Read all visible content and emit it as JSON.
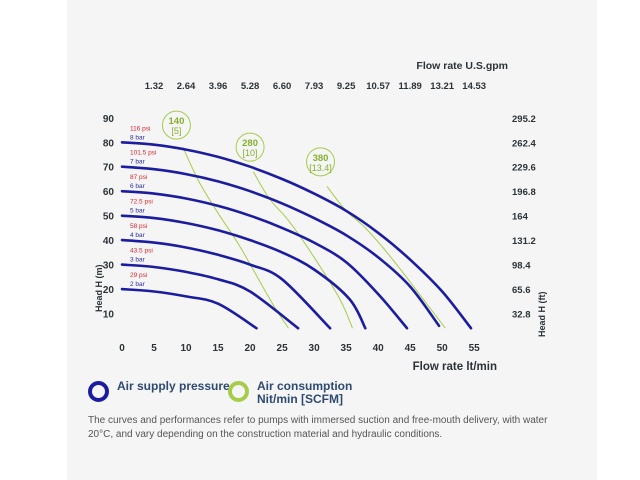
{
  "colors": {
    "pressure": "#1c1ca0",
    "air": "#a6cc4a",
    "air_text": "#86b02e",
    "psi": "#d8262e",
    "bar": "#2a2aa0",
    "text": "#2b3338",
    "legend_text": "#2e4a73"
  },
  "legend": {
    "pressure_label": "Air supply pressure",
    "air_label": "Air consumption Nit/min [SCFM]"
  },
  "note": "The curves and performances refer to pumps with immersed suction and free-mouth delivery, with water 20°C, and vary depending on the construction material and hydraulic conditions.",
  "chart_data": {
    "type": "line",
    "xlabel": "Flow rate lt/min",
    "ylabel_left": "Head H (m)",
    "ylabel_right": "Head H (ft)",
    "x2label": "Flow rate U.S.gpm",
    "xlim": [
      0,
      57
    ],
    "ylim": [
      0,
      94
    ],
    "x_ticks": [
      0,
      5,
      10,
      15,
      20,
      25,
      30,
      35,
      40,
      45,
      50,
      55
    ],
    "y_ticks": [
      10,
      20,
      30,
      40,
      50,
      60,
      70,
      80,
      90
    ],
    "y2_ticks": [
      {
        "label": "32.8",
        "y": 10
      },
      {
        "label": "65.6",
        "y": 20
      },
      {
        "label": "98.4",
        "y": 30
      },
      {
        "label": "131.2",
        "y": 40
      },
      {
        "label": "164",
        "y": 50
      },
      {
        "label": "196.8",
        "y": 60
      },
      {
        "label": "229.6",
        "y": 70
      },
      {
        "label": "262.4",
        "y": 80
      },
      {
        "label": "295.2",
        "y": 90
      }
    ],
    "x2_ticks": [
      {
        "label": "1.32",
        "x": 5
      },
      {
        "label": "2.64",
        "x": 10
      },
      {
        "label": "3.96",
        "x": 15
      },
      {
        "label": "5.28",
        "x": 20
      },
      {
        "label": "6.60",
        "x": 25
      },
      {
        "label": "7.93",
        "x": 30
      },
      {
        "label": "9.25",
        "x": 35
      },
      {
        "label": "10.57",
        "x": 40
      },
      {
        "label": "11.89",
        "x": 45
      },
      {
        "label": "13.21",
        "x": 50
      },
      {
        "label": "14.53",
        "x": 55
      }
    ],
    "series": [
      {
        "psi": "29 psi",
        "bar": "2 bar",
        "points": [
          [
            0,
            20
          ],
          [
            5,
            19
          ],
          [
            10,
            17
          ],
          [
            15,
            14
          ],
          [
            21,
            4
          ]
        ]
      },
      {
        "psi": "43.5 psi",
        "bar": "3 bar",
        "points": [
          [
            0,
            30
          ],
          [
            5,
            29
          ],
          [
            10,
            27
          ],
          [
            15,
            24
          ],
          [
            20,
            19
          ],
          [
            27.5,
            4
          ]
        ]
      },
      {
        "psi": "58 psi",
        "bar": "4 bar",
        "points": [
          [
            0,
            40
          ],
          [
            5,
            39
          ],
          [
            10,
            37
          ],
          [
            15,
            34
          ],
          [
            20,
            30
          ],
          [
            25,
            24
          ],
          [
            32.5,
            4
          ]
        ]
      },
      {
        "psi": "72.5 psi",
        "bar": "5 bar",
        "points": [
          [
            0,
            50
          ],
          [
            5,
            49
          ],
          [
            10,
            47
          ],
          [
            15,
            44
          ],
          [
            20,
            40
          ],
          [
            25,
            35
          ],
          [
            30,
            28
          ],
          [
            35.5,
            16
          ],
          [
            38,
            4
          ]
        ]
      },
      {
        "psi": "87 psi",
        "bar": "6 bar",
        "points": [
          [
            0,
            60
          ],
          [
            5,
            59
          ],
          [
            10,
            57
          ],
          [
            15,
            54
          ],
          [
            20,
            50
          ],
          [
            25,
            45
          ],
          [
            30,
            39
          ],
          [
            35,
            31
          ],
          [
            40,
            18
          ],
          [
            44.5,
            4
          ]
        ]
      },
      {
        "psi": "101.5 psi",
        "bar": "7 bar",
        "points": [
          [
            0,
            70
          ],
          [
            5,
            69
          ],
          [
            10,
            67
          ],
          [
            15,
            64
          ],
          [
            20,
            60
          ],
          [
            25,
            55
          ],
          [
            30,
            49
          ],
          [
            35,
            42
          ],
          [
            40,
            33
          ],
          [
            45,
            21
          ],
          [
            49.5,
            5
          ]
        ]
      },
      {
        "psi": "116 psi",
        "bar": "8 bar",
        "points": [
          [
            0,
            80
          ],
          [
            5,
            79
          ],
          [
            10,
            77
          ],
          [
            15,
            74
          ],
          [
            20,
            70
          ],
          [
            25,
            65
          ],
          [
            30,
            59
          ],
          [
            35,
            52
          ],
          [
            40,
            43
          ],
          [
            45,
            32
          ],
          [
            50,
            19
          ],
          [
            54.5,
            4
          ]
        ]
      }
    ],
    "air_consumption": [
      {
        "label": "140",
        "scfm": "[5]",
        "label_at": [
          8.5,
          87
        ],
        "points": [
          [
            9.5,
            78
          ],
          [
            12,
            64
          ],
          [
            15,
            51
          ],
          [
            18.5,
            37
          ],
          [
            23.5,
            14
          ],
          [
            26,
            4
          ]
        ]
      },
      {
        "label": "280",
        "scfm": "[10]",
        "label_at": [
          20,
          78
        ],
        "points": [
          [
            20.5,
            68
          ],
          [
            23,
            57
          ],
          [
            26,
            48
          ],
          [
            30,
            33
          ],
          [
            34,
            16
          ],
          [
            36,
            4
          ]
        ]
      },
      {
        "label": "380",
        "scfm": "[13.4]",
        "label_at": [
          31,
          72
        ],
        "points": [
          [
            32,
            62
          ],
          [
            35,
            52
          ],
          [
            38,
            45
          ],
          [
            42,
            33
          ],
          [
            47,
            16
          ],
          [
            50.5,
            4
          ]
        ]
      }
    ]
  }
}
